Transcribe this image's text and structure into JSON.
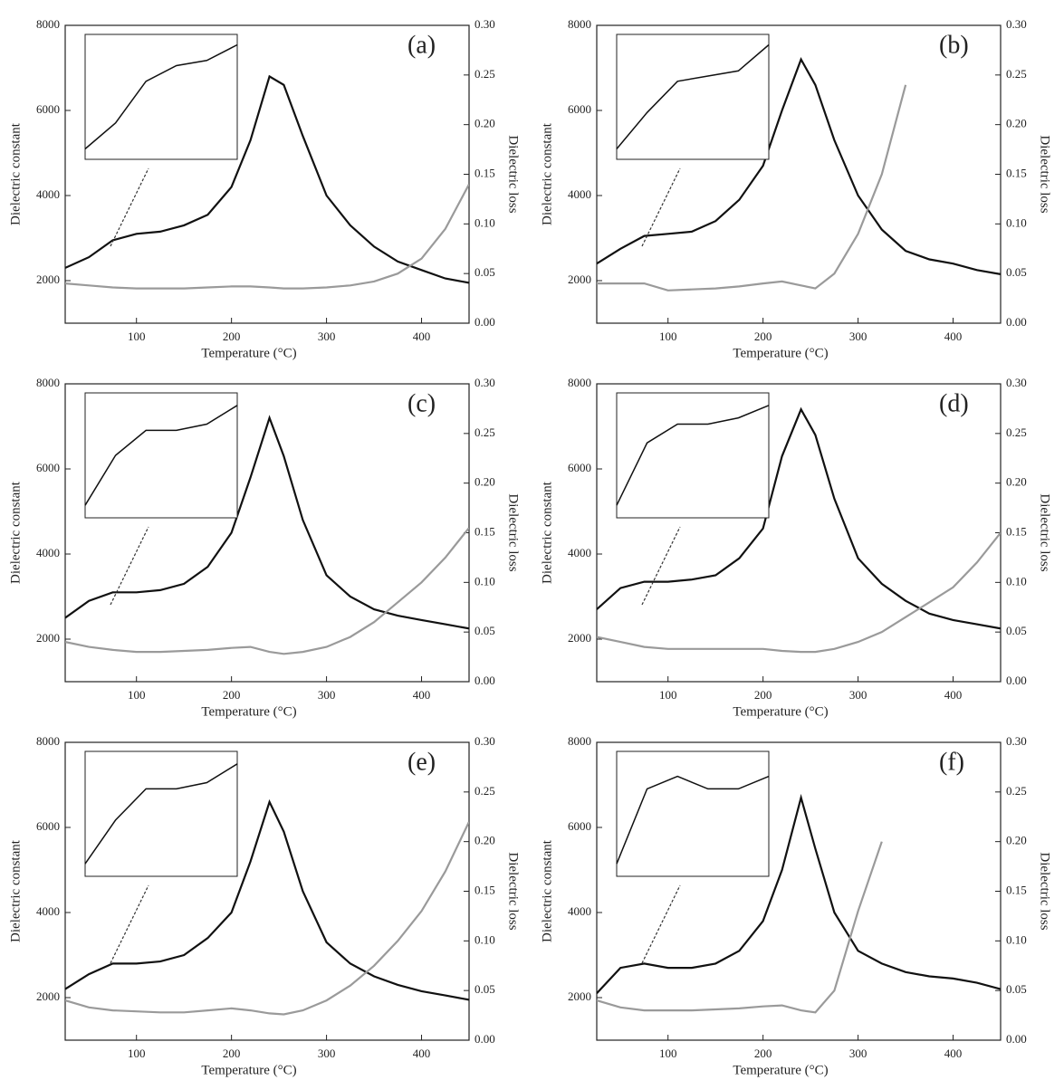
{
  "chart_data": [
    {
      "type": "line",
      "title": "(a)",
      "xlabel": "Temperature (°C)",
      "ylabel": "Dielectric constant",
      "y2label": "Dielectric loss",
      "x": [
        25,
        50,
        75,
        100,
        125,
        150,
        175,
        200,
        220,
        240,
        255,
        275,
        300,
        325,
        350,
        375,
        400,
        425,
        450
      ],
      "series": [
        {
          "name": "Dielectric constant",
          "color": "#111111",
          "values": [
            2300,
            2550,
            2950,
            3100,
            3150,
            3300,
            3550,
            4200,
            5300,
            6800,
            6600,
            5400,
            4000,
            3300,
            2800,
            2450,
            2250,
            2050,
            1950
          ]
        },
        {
          "name": "Dielectric loss",
          "color": "#9a9a9a",
          "axis": "y2",
          "values": [
            0.04,
            0.038,
            0.036,
            0.035,
            0.035,
            0.035,
            0.036,
            0.037,
            0.037,
            0.036,
            0.035,
            0.035,
            0.036,
            0.038,
            0.042,
            0.05,
            0.065,
            0.095,
            0.14
          ]
        }
      ],
      "xlim": [
        25,
        450
      ],
      "ylim": [
        1000,
        8000
      ],
      "y2lim": [
        0,
        0.3
      ],
      "xticks": [
        100,
        200,
        300,
        400
      ],
      "yticks": [
        2000,
        4000,
        6000,
        8000
      ],
      "y2ticks": [
        {
          "value": 0,
          "label": "0.00"
        },
        {
          "value": 0.05,
          "label": "0.05"
        },
        {
          "value": 0.1,
          "label": "0.10"
        },
        {
          "value": 0.15,
          "label": "0.15"
        },
        {
          "value": 0.2,
          "label": "0.20"
        },
        {
          "value": 0.25,
          "label": "0.25"
        },
        {
          "value": 0.3,
          "label": "0.30"
        }
      ],
      "inset": {
        "xlim": [
          25,
          150
        ],
        "ylim": [
          2200,
          3400
        ]
      }
    },
    {
      "type": "line",
      "title": "(b)",
      "xlabel": "Temperature (°C)",
      "ylabel": "Dielectric constant",
      "y2label": "Dielectric loss",
      "x": [
        25,
        50,
        75,
        100,
        125,
        150,
        175,
        200,
        220,
        240,
        255,
        275,
        300,
        325,
        350,
        375,
        400,
        425,
        450
      ],
      "series": [
        {
          "name": "Dielectric constant",
          "color": "#111111",
          "values": [
            2400,
            2750,
            3050,
            3100,
            3150,
            3400,
            3900,
            4700,
            6000,
            7200,
            6600,
            5300,
            4000,
            3200,
            2700,
            2500,
            2400,
            2250,
            2150
          ]
        },
        {
          "name": "Dielectric loss",
          "color": "#9a9a9a",
          "axis": "y2",
          "values": [
            0.04,
            0.04,
            0.04,
            0.033,
            0.034,
            0.035,
            0.037,
            0.04,
            0.042,
            0.038,
            0.035,
            0.05,
            0.09,
            0.15,
            0.24,
            null,
            null,
            null,
            null
          ]
        }
      ],
      "xlim": [
        25,
        450
      ],
      "ylim": [
        1000,
        8000
      ],
      "y2lim": [
        0,
        0.3
      ],
      "xticks": [
        100,
        200,
        300,
        400
      ],
      "yticks": [
        2000,
        4000,
        6000,
        8000
      ],
      "y2ticks": [
        {
          "value": 0,
          "label": "0.00"
        },
        {
          "value": 0.05,
          "label": "0.05"
        },
        {
          "value": 0.1,
          "label": "0.10"
        },
        {
          "value": 0.15,
          "label": "0.15"
        },
        {
          "value": 0.2,
          "label": "0.20"
        },
        {
          "value": 0.25,
          "label": "0.25"
        },
        {
          "value": 0.3,
          "label": "0.30"
        }
      ],
      "inset": {
        "xlim": [
          25,
          150
        ],
        "ylim": [
          2300,
          3500
        ]
      }
    },
    {
      "type": "line",
      "title": "(c)",
      "xlabel": "Temperature (°C)",
      "ylabel": "Dielectric constant",
      "y2label": "Dielectric loss",
      "x": [
        25,
        50,
        75,
        100,
        125,
        150,
        175,
        200,
        220,
        240,
        255,
        275,
        300,
        325,
        350,
        375,
        400,
        425,
        450
      ],
      "series": [
        {
          "name": "Dielectric constant",
          "color": "#111111",
          "values": [
            2500,
            2900,
            3100,
            3100,
            3150,
            3300,
            3700,
            4500,
            5800,
            7200,
            6300,
            4800,
            3500,
            3000,
            2700,
            2550,
            2450,
            2350,
            2250
          ]
        },
        {
          "name": "Dielectric loss",
          "color": "#9a9a9a",
          "axis": "y2",
          "values": [
            0.04,
            0.035,
            0.032,
            0.03,
            0.03,
            0.031,
            0.032,
            0.034,
            0.035,
            0.03,
            0.028,
            0.03,
            0.035,
            0.045,
            0.06,
            0.08,
            0.1,
            0.125,
            0.155
          ]
        }
      ],
      "xlim": [
        25,
        450
      ],
      "ylim": [
        1000,
        8000
      ],
      "y2lim": [
        0,
        0.3
      ],
      "xticks": [
        100,
        200,
        300,
        400
      ],
      "yticks": [
        2000,
        4000,
        6000,
        8000
      ],
      "y2ticks": [
        {
          "value": 0,
          "label": "0.00"
        },
        {
          "value": 0.05,
          "label": "0.05"
        },
        {
          "value": 0.1,
          "label": "0.10"
        },
        {
          "value": 0.15,
          "label": "0.15"
        },
        {
          "value": 0.2,
          "label": "0.20"
        },
        {
          "value": 0.25,
          "label": "0.25"
        },
        {
          "value": 0.3,
          "label": "0.30"
        }
      ],
      "inset": {
        "xlim": [
          25,
          150
        ],
        "ylim": [
          2400,
          3400
        ]
      }
    },
    {
      "type": "line",
      "title": "(d)",
      "xlabel": "Temperature (°C)",
      "ylabel": "Dielectric constant",
      "y2label": "Dielectric loss",
      "x": [
        25,
        50,
        75,
        100,
        125,
        150,
        175,
        200,
        220,
        240,
        255,
        275,
        300,
        325,
        350,
        375,
        400,
        425,
        450
      ],
      "series": [
        {
          "name": "Dielectric constant",
          "color": "#111111",
          "values": [
            2700,
            3200,
            3350,
            3350,
            3400,
            3500,
            3900,
            4600,
            6300,
            7400,
            6800,
            5300,
            3900,
            3300,
            2900,
            2600,
            2450,
            2350,
            2250
          ]
        },
        {
          "name": "Dielectric loss",
          "color": "#9a9a9a",
          "axis": "y2",
          "values": [
            0.045,
            0.04,
            0.035,
            0.033,
            0.033,
            0.033,
            0.033,
            0.033,
            0.031,
            0.03,
            0.03,
            0.033,
            0.04,
            0.05,
            0.065,
            0.08,
            0.095,
            0.12,
            0.15
          ]
        }
      ],
      "xlim": [
        25,
        450
      ],
      "ylim": [
        1000,
        8000
      ],
      "y2lim": [
        0,
        0.3
      ],
      "xticks": [
        100,
        200,
        300,
        400
      ],
      "yticks": [
        2000,
        4000,
        6000,
        8000
      ],
      "y2ticks": [
        {
          "value": 0,
          "label": "0.00"
        },
        {
          "value": 0.05,
          "label": "0.05"
        },
        {
          "value": 0.1,
          "label": "0.10"
        },
        {
          "value": 0.15,
          "label": "0.15"
        },
        {
          "value": 0.2,
          "label": "0.20"
        },
        {
          "value": 0.25,
          "label": "0.25"
        },
        {
          "value": 0.3,
          "label": "0.30"
        }
      ],
      "inset": {
        "xlim": [
          25,
          150
        ],
        "ylim": [
          2600,
          3600
        ]
      }
    },
    {
      "type": "line",
      "title": "(e)",
      "xlabel": "Temperature (°C)",
      "ylabel": "Dielectric constant",
      "y2label": "Dielectric loss",
      "x": [
        25,
        50,
        75,
        100,
        125,
        150,
        175,
        200,
        220,
        240,
        255,
        275,
        300,
        325,
        350,
        375,
        400,
        425,
        450
      ],
      "series": [
        {
          "name": "Dielectric constant",
          "color": "#111111",
          "values": [
            2200,
            2550,
            2800,
            2800,
            2850,
            3000,
            3400,
            4000,
            5200,
            6600,
            5900,
            4500,
            3300,
            2800,
            2500,
            2300,
            2150,
            2050,
            1950
          ]
        },
        {
          "name": "Dielectric loss",
          "color": "#9a9a9a",
          "axis": "y2",
          "values": [
            0.04,
            0.033,
            0.03,
            0.029,
            0.028,
            0.028,
            0.03,
            0.032,
            0.03,
            0.027,
            0.026,
            0.03,
            0.04,
            0.055,
            0.075,
            0.1,
            0.13,
            0.17,
            0.22
          ]
        }
      ],
      "xlim": [
        25,
        450
      ],
      "ylim": [
        1000,
        8000
      ],
      "y2lim": [
        0,
        0.3
      ],
      "xticks": [
        100,
        200,
        300,
        400
      ],
      "yticks": [
        2000,
        4000,
        6000,
        8000
      ],
      "y2ticks": [
        {
          "value": 0,
          "label": "0.00"
        },
        {
          "value": 0.05,
          "label": "0.05"
        },
        {
          "value": 0.1,
          "label": "0.10"
        },
        {
          "value": 0.15,
          "label": "0.15"
        },
        {
          "value": 0.2,
          "label": "0.20"
        },
        {
          "value": 0.25,
          "label": "0.25"
        },
        {
          "value": 0.3,
          "label": "0.30"
        }
      ],
      "inset": {
        "xlim": [
          25,
          150
        ],
        "ylim": [
          2100,
          3100
        ]
      }
    },
    {
      "type": "line",
      "title": "(f)",
      "xlabel": "Temperature (°C)",
      "ylabel": "Dielectric constant",
      "y2label": "Dielectric loss",
      "x": [
        25,
        50,
        75,
        100,
        125,
        150,
        175,
        200,
        220,
        240,
        255,
        275,
        300,
        325,
        350,
        375,
        400,
        425,
        450
      ],
      "series": [
        {
          "name": "Dielectric constant",
          "color": "#111111",
          "values": [
            2100,
            2700,
            2800,
            2700,
            2700,
            2800,
            3100,
            3800,
            5000,
            6700,
            5500,
            4000,
            3100,
            2800,
            2600,
            2500,
            2450,
            2350,
            2200
          ]
        },
        {
          "name": "Dielectric loss",
          "color": "#9a9a9a",
          "axis": "y2",
          "values": [
            0.04,
            0.033,
            0.03,
            0.03,
            0.03,
            0.031,
            0.032,
            0.034,
            0.035,
            0.03,
            0.028,
            0.05,
            0.13,
            0.2,
            null,
            null,
            null,
            null,
            null
          ]
        }
      ],
      "xlim": [
        25,
        450
      ],
      "ylim": [
        1000,
        8000
      ],
      "y2lim": [
        0,
        0.3
      ],
      "xticks": [
        100,
        200,
        300,
        400
      ],
      "yticks": [
        2000,
        4000,
        6000,
        8000
      ],
      "y2ticks": [
        {
          "value": 0,
          "label": "0.00"
        },
        {
          "value": 0.05,
          "label": "0.05"
        },
        {
          "value": 0.1,
          "label": "0.10"
        },
        {
          "value": 0.15,
          "label": "0.15"
        },
        {
          "value": 0.2,
          "label": "0.20"
        },
        {
          "value": 0.25,
          "label": "0.25"
        },
        {
          "value": 0.3,
          "label": "0.30"
        }
      ],
      "inset": {
        "xlim": [
          25,
          150
        ],
        "ylim": [
          2000,
          3000
        ]
      }
    }
  ]
}
